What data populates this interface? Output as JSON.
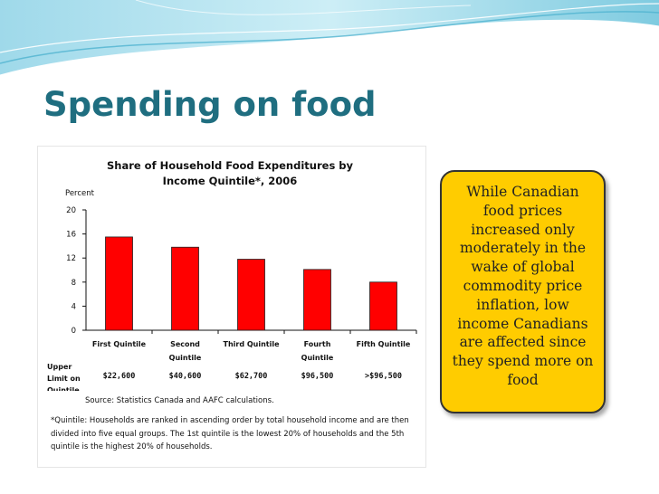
{
  "slide": {
    "title": "Spending on food",
    "callout": "While Canadian food prices increased only moderately in the wake of global commodity price inflation, low income Canadians are affected since they spend more on food"
  },
  "colors": {
    "title": "#1f6e80",
    "bar": "#ff0000",
    "callout_bg": "#ffcc00",
    "wave_dark": "#5fbfd8",
    "wave_light": "#bfe6f0"
  },
  "chart_data": {
    "type": "bar",
    "title_line1": "Share of Household Food Expenditures by",
    "title_line2": "Income Quintile*, 2006",
    "ylabel": "Percent",
    "ylim": [
      0,
      20
    ],
    "yticks": [
      0,
      4,
      8,
      12,
      16,
      20
    ],
    "categories": [
      {
        "line1": "First Quintile",
        "line2": ""
      },
      {
        "line1": "Second",
        "line2": "Quintile"
      },
      {
        "line1": "Third Quintile",
        "line2": ""
      },
      {
        "line1": "Fourth",
        "line2": "Quintile"
      },
      {
        "line1": "Fifth Quintile",
        "line2": ""
      }
    ],
    "values": [
      15.5,
      13.8,
      11.8,
      10.1,
      8.0
    ],
    "upper_limit_label": [
      "Upper",
      "Limit on",
      "Quintile"
    ],
    "upper_limits": [
      "$22,600",
      "$40,600",
      "$62,700",
      "$96,500",
      ">$96,500"
    ],
    "source": "Source: Statistics Canada and AAFC calculations.",
    "footnote": "*Quintile: Households are ranked in ascending order by total household income and are then divided into five equal groups. The 1st quintile is the lowest 20% of households and the 5th quintile is the highest 20% of households."
  }
}
